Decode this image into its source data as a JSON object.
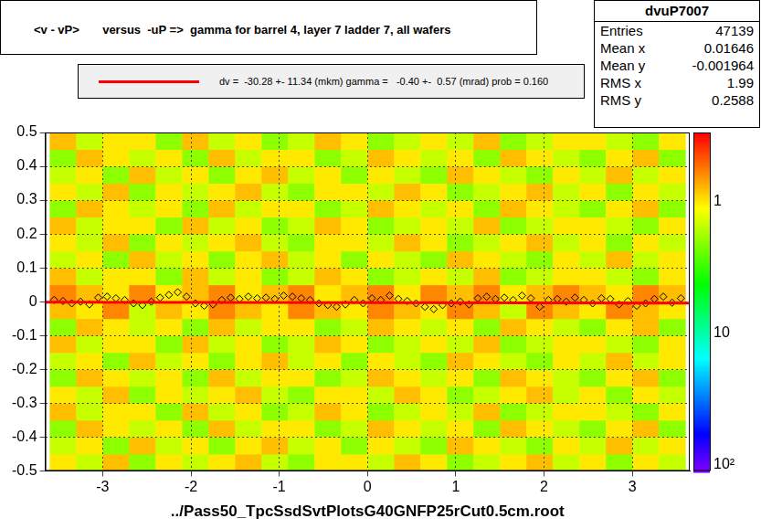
{
  "chart_data": {
    "type": "heatmap",
    "title": "<v - vP>       versus  -uP =>  gamma for barrel 4, layer 7 ladder 7, all wafers",
    "x_title": "../Pass50_TpcSsdSvtPlotsG40GNFP25rCut0.5cm.root",
    "xlim": [
      -3.65,
      3.65
    ],
    "xticks": [
      -3,
      -2,
      -1,
      0,
      1,
      2,
      3
    ],
    "ylim": [
      -0.5,
      0.5
    ],
    "yticks": [
      -0.5,
      -0.4,
      -0.3,
      -0.2,
      -0.1,
      0,
      0.1,
      0.2,
      0.3,
      0.4,
      0.5
    ],
    "grid": true,
    "stats": {
      "title": "dvuP7007",
      "rows": [
        [
          "Entries",
          47139
        ],
        [
          "Mean x",
          0.01646
        ],
        [
          "Mean y",
          -0.001964
        ],
        [
          "RMS x",
          1.99
        ],
        [
          "RMS y",
          0.2588
        ]
      ]
    },
    "colorbar": {
      "lim": [
        0.3,
        112
      ],
      "log": true,
      "ticks": [
        1,
        10,
        {
          "value": 100,
          "label": "10²"
        }
      ]
    },
    "cells": {
      "x_bins": [
        -3.6,
        -3.3,
        -3.0,
        -2.7,
        -2.4,
        -2.1,
        -1.8,
        -1.5,
        -1.2,
        -0.9,
        -0.6,
        -0.3,
        0,
        0.3,
        0.6,
        0.9,
        1.2,
        1.5,
        1.8,
        2.1,
        2.4,
        2.7,
        3.0,
        3.3,
        3.6
      ],
      "y_bins": [
        -0.5,
        -0.45,
        -0.4,
        -0.35,
        -0.3,
        -0.25,
        -0.2,
        -0.15,
        -0.1,
        -0.05,
        0,
        0.05,
        0.1,
        0.15,
        0.2,
        0.25,
        0.3,
        0.35,
        0.4,
        0.45,
        0.5
      ],
      "values": [
        [
          1,
          1.5,
          0.8,
          2,
          1,
          1.5,
          1,
          0.8,
          1.5,
          2,
          1,
          1,
          1.5,
          0.8,
          1,
          2,
          1.5,
          1,
          0.8,
          1.5,
          1,
          2,
          1,
          1.5
        ],
        [
          1.5,
          1,
          2,
          0.8,
          1.5,
          1,
          2,
          1,
          0.8,
          1.5,
          1,
          2,
          1,
          1.5,
          2,
          0.8,
          1,
          1.5,
          2,
          1,
          1.5,
          0.8,
          1.5,
          1
        ],
        [
          2,
          0.8,
          1,
          1.5,
          1,
          2,
          0.8,
          1.5,
          1,
          1,
          2,
          1.5,
          0.8,
          1,
          1.5,
          1,
          2,
          0.8,
          1,
          1.5,
          2,
          1,
          0.8,
          2
        ],
        [
          0.8,
          1.5,
          1,
          1,
          2,
          0.8,
          1.5,
          1,
          2,
          1.5,
          0.8,
          1,
          2,
          1.5,
          1,
          1.5,
          0.8,
          2,
          1.5,
          1,
          1,
          1.5,
          2,
          1
        ],
        [
          1,
          1.5,
          0.8,
          2,
          1,
          1.5,
          1,
          0.8,
          1.5,
          2,
          1,
          1,
          1.5,
          0.8,
          1,
          2,
          1.5,
          1,
          0.8,
          1.5,
          1,
          2,
          1,
          1.5
        ],
        [
          2,
          0.8,
          1,
          1.5,
          1,
          2,
          0.8,
          1.5,
          1,
          1,
          2,
          1.5,
          0.8,
          1,
          1.5,
          1,
          2,
          0.8,
          1,
          1.5,
          2,
          1,
          0.8,
          2
        ],
        [
          1.5,
          1,
          2,
          0.8,
          1.5,
          1,
          2,
          1,
          0.8,
          1.5,
          1,
          2,
          1,
          1.5,
          2,
          0.8,
          1,
          1.5,
          2,
          1,
          1.5,
          0.8,
          1.5,
          1
        ],
        [
          0.8,
          1.5,
          1,
          1,
          2,
          0.8,
          1.5,
          1,
          2,
          1.5,
          0.8,
          1,
          2,
          1.5,
          1,
          1.5,
          0.8,
          2,
          1.5,
          1,
          1,
          1.5,
          2,
          1
        ],
        [
          2,
          0.8,
          1,
          1.5,
          1,
          2,
          0.8,
          1.5,
          1,
          1,
          2,
          1.5,
          0.8,
          1,
          1.5,
          1,
          2,
          0.8,
          1,
          1.5,
          2,
          1,
          0.8,
          2
        ],
        [
          0.8,
          1,
          0.6,
          1.5,
          0.8,
          1,
          0.6,
          0.8,
          1,
          0.6,
          0.8,
          1,
          0.6,
          0.8,
          1,
          0.6,
          0.8,
          1.5,
          0.6,
          0.8,
          1,
          0.6,
          0.8,
          1
        ],
        [
          0.6,
          0.8,
          1,
          0.6,
          1,
          0.8,
          0.6,
          1,
          0.8,
          0.6,
          1,
          0.8,
          0.6,
          1,
          0.6,
          0.8,
          0.6,
          1,
          0.8,
          0.6,
          0.8,
          1,
          0.6,
          0.8
        ],
        [
          0.8,
          1.5,
          1,
          1,
          2,
          0.8,
          1.5,
          1,
          2,
          1.5,
          0.8,
          1,
          2,
          1.5,
          1,
          1.5,
          0.8,
          2,
          1.5,
          1,
          1,
          1.5,
          2,
          1
        ],
        [
          1.5,
          1,
          2,
          0.8,
          1.5,
          1,
          2,
          1,
          0.8,
          1.5,
          1,
          2,
          1,
          1.5,
          2,
          0.8,
          1,
          1.5,
          2,
          1,
          1.5,
          0.8,
          1.5,
          1
        ],
        [
          1,
          1.5,
          0.8,
          2,
          1,
          1.5,
          1,
          0.8,
          1.5,
          2,
          1,
          1,
          1.5,
          0.8,
          1,
          2,
          1.5,
          1,
          0.8,
          1.5,
          1,
          2,
          1,
          1.5
        ],
        [
          0.8,
          1.5,
          1,
          1,
          2,
          0.8,
          1.5,
          1,
          2,
          1.5,
          0.8,
          1,
          2,
          1.5,
          1,
          1.5,
          0.8,
          2,
          1.5,
          1,
          1,
          1.5,
          2,
          1
        ],
        [
          2,
          0.8,
          1,
          1.5,
          1,
          2,
          0.8,
          1.5,
          1,
          1,
          2,
          1.5,
          0.8,
          1,
          1.5,
          1,
          2,
          0.8,
          1,
          1.5,
          2,
          1,
          0.8,
          2
        ],
        [
          1,
          1.5,
          0.8,
          2,
          1,
          1.5,
          1,
          0.8,
          1.5,
          2,
          1,
          1,
          1.5,
          0.8,
          1,
          2,
          1.5,
          1,
          0.8,
          1.5,
          1,
          2,
          1,
          1.5
        ],
        [
          1.5,
          1,
          2,
          0.8,
          1.5,
          1,
          2,
          1,
          0.8,
          1.5,
          1,
          2,
          1,
          1.5,
          2,
          0.8,
          1,
          1.5,
          2,
          1,
          1.5,
          0.8,
          1.5,
          1
        ],
        [
          2,
          0.8,
          1,
          1.5,
          1,
          2,
          0.8,
          1.5,
          1,
          1,
          2,
          1.5,
          0.8,
          1,
          1.5,
          1,
          2,
          0.8,
          1,
          1.5,
          2,
          1,
          0.8,
          2
        ],
        [
          0.8,
          1.5,
          1,
          1,
          2,
          0.8,
          1.5,
          1,
          2,
          1.5,
          0.8,
          1,
          2,
          1.5,
          1,
          1.5,
          0.8,
          2,
          1.5,
          1,
          1,
          1.5,
          2,
          1
        ]
      ]
    },
    "profile": {
      "marker": "diamond",
      "color": "#000000",
      "x": [
        -3.55,
        -3.45,
        -3.35,
        -3.25,
        -3.15,
        -3.05,
        -2.95,
        -2.85,
        -2.75,
        -2.65,
        -2.55,
        -2.45,
        -2.35,
        -2.25,
        -2.15,
        -2.05,
        -1.95,
        -1.85,
        -1.75,
        -1.65,
        -1.55,
        -1.45,
        -1.35,
        -1.25,
        -1.15,
        -1.05,
        -0.95,
        -0.85,
        -0.75,
        -0.65,
        -0.55,
        -0.45,
        -0.35,
        -0.25,
        -0.15,
        -0.05,
        0.05,
        0.15,
        0.25,
        0.35,
        0.45,
        0.55,
        0.65,
        0.75,
        0.85,
        0.95,
        1.05,
        1.15,
        1.25,
        1.35,
        1.45,
        1.55,
        1.65,
        1.75,
        1.85,
        1.95,
        2.05,
        2.15,
        2.25,
        2.35,
        2.45,
        2.55,
        2.65,
        2.75,
        2.85,
        2.95,
        3.05,
        3.15,
        3.25,
        3.35,
        3.45,
        3.55
      ],
      "values": [
        0.005,
        0.002,
        -0.005,
        0.0,
        -0.008,
        0.012,
        0.015,
        0.01,
        0.005,
        -0.005,
        -0.01,
        0.0,
        0.012,
        0.02,
        0.028,
        0.015,
        -0.005,
        -0.012,
        -0.008,
        0.005,
        0.012,
        0.008,
        0.015,
        0.01,
        0.012,
        0.008,
        0.018,
        0.015,
        0.01,
        0.005,
        -0.005,
        -0.01,
        -0.015,
        -0.008,
        0.005,
        -0.005,
        0.01,
        0.005,
        0.018,
        0.008,
        0.002,
        -0.005,
        -0.015,
        -0.022,
        -0.01,
        -0.005,
        0.0,
        -0.008,
        0.01,
        0.015,
        0.008,
        0.012,
        0.005,
        0.018,
        0.01,
        -0.015,
        0.005,
        0.008,
        0.0,
        0.012,
        0.005,
        -0.005,
        0.01,
        0.008,
        -0.008,
        0.002,
        -0.012,
        -0.005,
        0.008,
        0.015,
        -0.003,
        0.01
      ]
    },
    "fit": {
      "label": "dv =  -30.28 +- 11.34 (mkm) gamma =   -0.40 +-  0.57 (mrad) prob = 0.160",
      "color": "#ff0000",
      "x": [
        -3.65,
        3.65
      ],
      "values": [
        -0.00157,
        -0.00449
      ]
    }
  }
}
